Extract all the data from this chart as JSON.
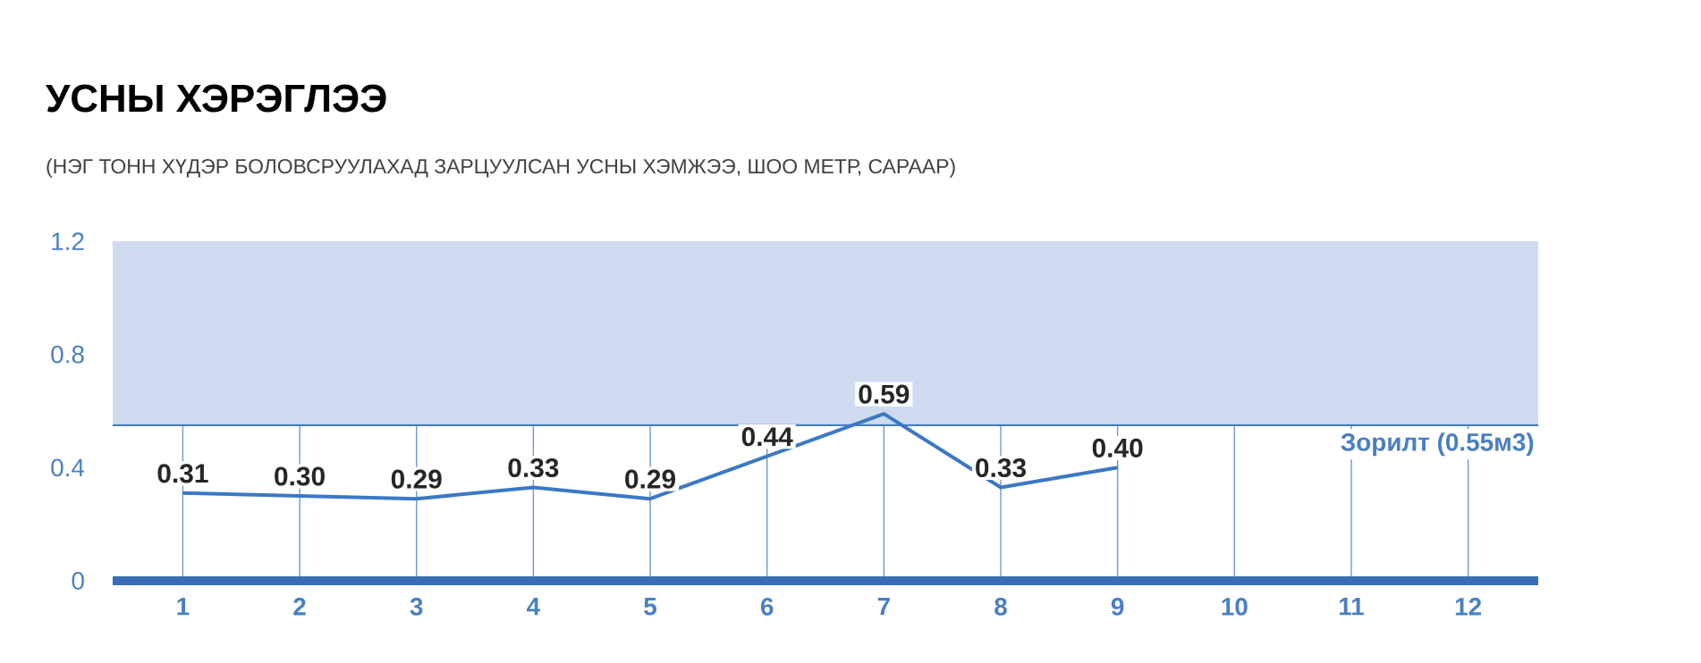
{
  "chart_data": {
    "type": "line",
    "title": "УСНЫ ХЭРЭГЛЭЭ",
    "subtitle": "(НЭГ ТОНН ХҮДЭР БОЛОВСРУУЛАХАД ЗАРЦУУЛСАН УСНЫ ХЭМЖЭЭ, ШОО МЕТР, САРААР)",
    "categories": [
      "1",
      "2",
      "3",
      "4",
      "5",
      "6",
      "7",
      "8",
      "9",
      "10",
      "11",
      "12"
    ],
    "series": [
      {
        "color": "#3b78c4",
        "values": [
          0.31,
          0.3,
          0.29,
          0.33,
          0.29,
          0.44,
          0.59,
          0.33,
          0.4,
          null,
          null,
          null
        ],
        "value_labels": [
          "0.31",
          "0.30",
          "0.29",
          "0.33",
          "0.29",
          "0.44",
          "0.59",
          "0.33",
          "0.40",
          null,
          null,
          null
        ]
      }
    ],
    "ylim": [
      0,
      1.2
    ],
    "yticks": [
      0,
      0.4,
      0.8,
      1.2
    ],
    "grid": "x",
    "ref_lines": [
      {
        "axis": "y",
        "value": 0.55,
        "label": "Зорилт (0.55м3)",
        "color": "#4a7fc1"
      }
    ],
    "bands": [
      {
        "axis": "y",
        "from": 0.55,
        "to": 1.2,
        "color": "#cfdcef"
      }
    ]
  }
}
